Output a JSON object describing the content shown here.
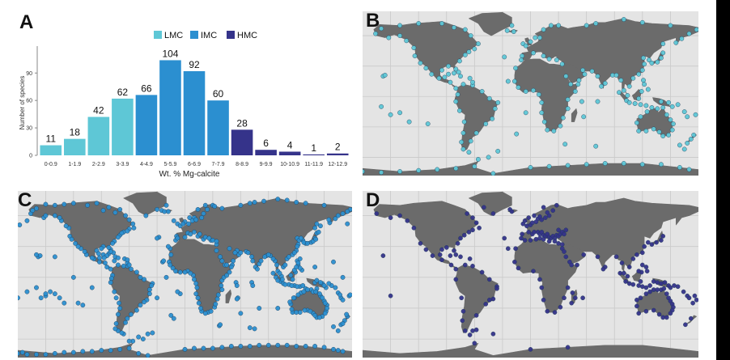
{
  "panels": {
    "a": "A",
    "b": "B",
    "c": "C",
    "d": "D"
  },
  "chart_data": {
    "type": "bar",
    "categories": [
      "0-0.9",
      "1-1.9",
      "2-2.9",
      "3-3.9",
      "4-4.9",
      "5-5.9",
      "6-6.9",
      "7-7.9",
      "8-8.9",
      "9-9.9",
      "10-10.9",
      "11-11.9",
      "12-12.9"
    ],
    "values": [
      11,
      18,
      42,
      62,
      66,
      104,
      92,
      60,
      28,
      6,
      4,
      1,
      2
    ],
    "groups": [
      "LMC",
      "LMC",
      "LMC",
      "LMC",
      "IMC",
      "IMC",
      "IMC",
      "IMC",
      "HMC",
      "HMC",
      "HMC",
      "HMC",
      "HMC"
    ],
    "xlabel": "Wt. % Mg-calcite",
    "ylabel": "Number of species",
    "ylim": [
      0,
      115
    ],
    "yticks": [
      0,
      30,
      60,
      90
    ],
    "legend": {
      "placement": "top-center",
      "entries": [
        "LMC",
        "IMC",
        "HMC"
      ]
    },
    "colors": {
      "LMC": "#5ec7d6",
      "IMC": "#2b8fd0",
      "HMC": "#35338a"
    }
  },
  "maps": {
    "B": {
      "group": "LMC",
      "color": "#5ec7d6"
    },
    "C": {
      "group": "IMC",
      "color": "#2b8fd0"
    },
    "D": {
      "group": "HMC",
      "color": "#35338a"
    }
  }
}
